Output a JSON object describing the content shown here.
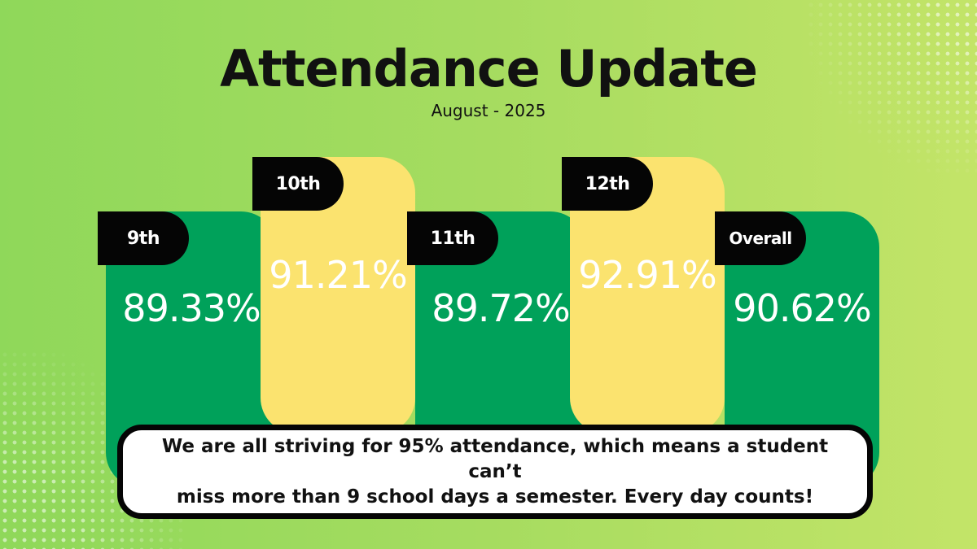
{
  "header": {
    "title": "Attendance Update",
    "subtitle": "August - 2025"
  },
  "colors": {
    "background_start": "#8fd85a",
    "background_end": "#c3e468",
    "green_column": "#00a15a",
    "yellow_column": "#fbe36f",
    "label_tag": "#050505",
    "percent_text": "#ffffff"
  },
  "grades": [
    {
      "label": "9th",
      "value": "89.33%",
      "color": "green"
    },
    {
      "label": "10th",
      "value": "91.21%",
      "color": "yellow"
    },
    {
      "label": "11th",
      "value": "89.72%",
      "color": "green"
    },
    {
      "label": "12th",
      "value": "92.91%",
      "color": "yellow"
    },
    {
      "label": "Overall",
      "value": "90.62%",
      "color": "green"
    }
  ],
  "message": {
    "line1": "We are all striving for 95% attendance, which means a student can’t",
    "line2": "miss more than 9 school days a semester. Every day counts!"
  }
}
